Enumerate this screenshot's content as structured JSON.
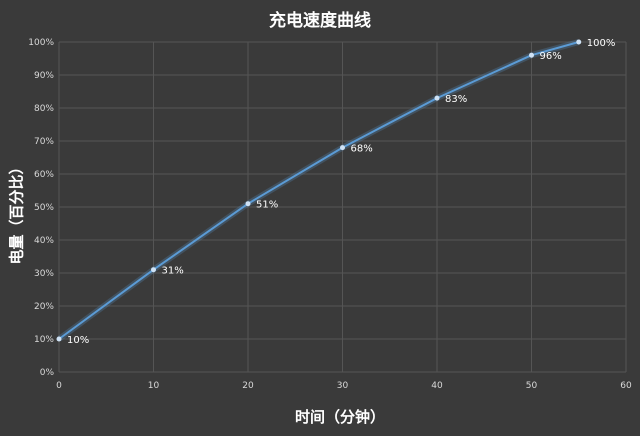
{
  "colors": {
    "background": "#3a3a3a",
    "grid": "#555555",
    "line": "#5b9bd5",
    "text": "#ffffff"
  },
  "chart_data": {
    "type": "line",
    "title": "充电速度曲线",
    "xlabel": "时间（分钟）",
    "ylabel": "电量（百分比）",
    "xlim": [
      0,
      60
    ],
    "ylim": [
      0,
      100
    ],
    "x_ticks": [
      0,
      10,
      20,
      30,
      40,
      50,
      60
    ],
    "y_ticks": [
      "0%",
      "10%",
      "20%",
      "30%",
      "40%",
      "50%",
      "60%",
      "70%",
      "80%",
      "90%",
      "100%"
    ],
    "grid": true,
    "legend": "none",
    "series": [
      {
        "x": [
          0,
          10,
          20,
          30,
          40,
          50,
          55
        ],
        "y": [
          10,
          31,
          51,
          68,
          83,
          96,
          100
        ],
        "labels": [
          "10%",
          "31%",
          "51%",
          "68%",
          "83%",
          "96%",
          "100%"
        ]
      }
    ]
  }
}
